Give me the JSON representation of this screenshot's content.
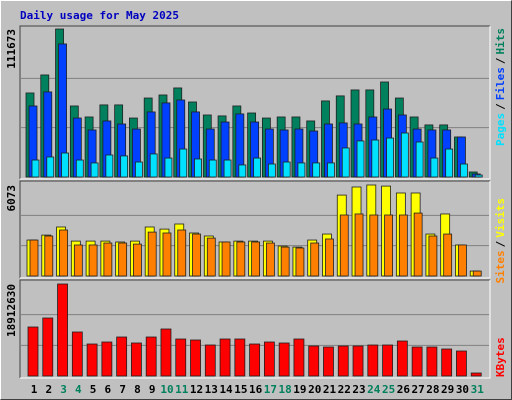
{
  "chart_data": [
    {
      "type": "bar",
      "title": "Daily usage for May 2025",
      "title_color": "#0000c0",
      "ylim": [
        0,
        111673
      ],
      "yticks": [
        111673
      ],
      "grid": true,
      "legend_separator": "/",
      "series": [
        {
          "name": "Hits",
          "color": "#00805c",
          "values": [
            63400,
            77000,
            111673,
            53600,
            45300,
            54400,
            54400,
            44500,
            59600,
            61900,
            67200,
            56600,
            46800,
            46100,
            53600,
            48300,
            44500,
            45300,
            45300,
            42300,
            57400,
            61200,
            65700,
            65700,
            71700,
            59600,
            45300,
            39300,
            39300,
            30200,
            3800
          ]
        },
        {
          "name": "Files",
          "color": "#0040ff",
          "values": [
            53600,
            64200,
            100400,
            44500,
            35500,
            42300,
            40000,
            36200,
            49100,
            55900,
            58100,
            49100,
            36200,
            41500,
            47600,
            41500,
            36200,
            35500,
            36200,
            34700,
            40000,
            40800,
            40000,
            45300,
            51300,
            46800,
            36200,
            35500,
            35500,
            30200,
            2300
          ]
        },
        {
          "name": "Pages",
          "color": "#00e0ff",
          "values": [
            12800,
            15100,
            18100,
            12800,
            10600,
            16600,
            15900,
            11300,
            17400,
            14300,
            21100,
            13600,
            12800,
            12800,
            9100,
            14300,
            9800,
            11300,
            10600,
            10600,
            10600,
            21900,
            27200,
            27900,
            29400,
            33200,
            26400,
            14300,
            21100,
            9800,
            1500
          ]
        }
      ]
    },
    {
      "type": "bar",
      "ylim": [
        0,
        6073
      ],
      "yticks": [
        6073
      ],
      "grid": true,
      "legend_separator": "/",
      "series": [
        {
          "name": "Visits",
          "color": "#ffff00",
          "values": [
            2400,
            2730,
            3270,
            2330,
            2330,
            2330,
            2270,
            2330,
            3270,
            3130,
            3470,
            2870,
            2670,
            2270,
            2330,
            2330,
            2330,
            2000,
            1930,
            2400,
            2800,
            5400,
            5940,
            6073,
            6000,
            5540,
            5540,
            2800,
            4140,
            2070,
            330
          ]
        },
        {
          "name": "Sites",
          "color": "#ff8000",
          "values": [
            2400,
            2670,
            3070,
            2070,
            2070,
            2200,
            2200,
            2130,
            2930,
            2870,
            3070,
            2800,
            2530,
            2270,
            2270,
            2270,
            2200,
            1930,
            1870,
            2200,
            2470,
            4070,
            4140,
            4070,
            4070,
            4070,
            4200,
            2670,
            2800,
            2070,
            330
          ]
        }
      ]
    },
    {
      "type": "bar",
      "ylim": [
        0,
        18912630
      ],
      "yticks": [
        18912630
      ],
      "grid": true,
      "series": [
        {
          "name": "KBytes",
          "color": "#ff0000",
          "values": [
            10073000,
            11923000,
            18912630,
            9045000,
            6578000,
            6989000,
            8017000,
            6784000,
            8017000,
            9662000,
            7606000,
            7401000,
            6373000,
            7606000,
            7606000,
            6578000,
            6989000,
            6784000,
            7606000,
            6167000,
            5962000,
            6167000,
            6167000,
            6373000,
            6373000,
            7195000,
            5962000,
            5962000,
            5550000,
            5139000,
            617000
          ]
        }
      ],
      "categories": [
        "1",
        "2",
        "3",
        "4",
        "5",
        "6",
        "7",
        "8",
        "9",
        "10",
        "11",
        "12",
        "13",
        "14",
        "15",
        "16",
        "17",
        "18",
        "19",
        "20",
        "21",
        "22",
        "23",
        "24",
        "25",
        "26",
        "27",
        "28",
        "29",
        "30",
        "31"
      ],
      "category_colors": [
        "#000000",
        "#000000",
        "#00805c",
        "#00805c",
        "#000000",
        "#000000",
        "#000000",
        "#000000",
        "#000000",
        "#00805c",
        "#00805c",
        "#000000",
        "#000000",
        "#000000",
        "#000000",
        "#000000",
        "#00805c",
        "#00805c",
        "#000000",
        "#000000",
        "#000000",
        "#000000",
        "#000000",
        "#00805c",
        "#00805c",
        "#000000",
        "#000000",
        "#000000",
        "#000000",
        "#000000",
        "#00805c"
      ]
    }
  ]
}
